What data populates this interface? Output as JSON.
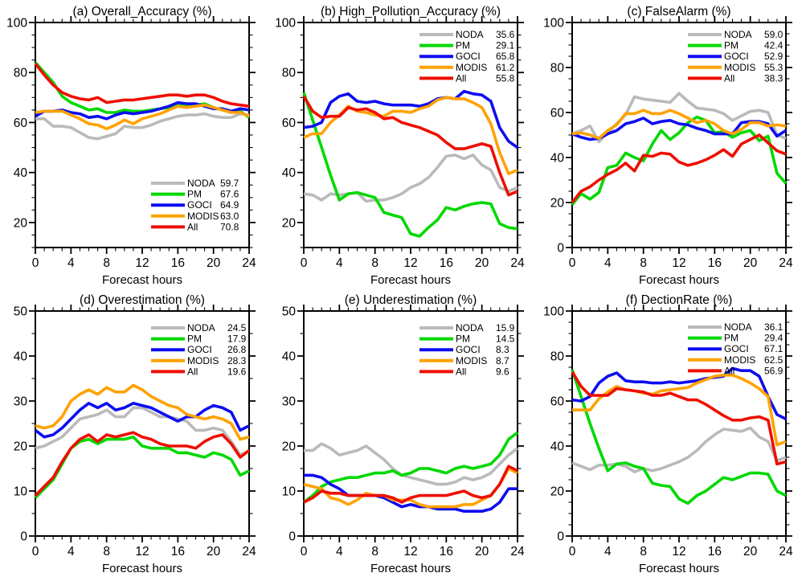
{
  "figure": {
    "background": "#ffffff"
  },
  "series_colors": {
    "NODA": "#bababa",
    "PM": "#00d900",
    "GOCI": "#0d0df0",
    "MODIS": "#ffa200",
    "All": "#ee0f00"
  },
  "x": {
    "label": "Forecast hours",
    "min": 0,
    "max": 24,
    "major_step": 4,
    "minor_step": 1,
    "hours": [
      0,
      1,
      2,
      3,
      4,
      5,
      6,
      7,
      8,
      9,
      10,
      11,
      12,
      13,
      14,
      15,
      16,
      17,
      18,
      19,
      20,
      21,
      22,
      23,
      24
    ]
  },
  "chart_data": [
    {
      "id": "a",
      "type": "line",
      "title": "(a) Overall_Accuracy (%)",
      "xlabel": "Forecast hours",
      "ylim": [
        10,
        100
      ],
      "ymajor": 20,
      "yminor": 5,
      "grid": false,
      "legend_position": "bottom-right",
      "legend_dy": 0,
      "series": [
        {
          "name": "NODA",
          "legend_value": "59.7",
          "values": [
            61.5,
            61.5,
            58.5,
            58.5,
            58,
            56,
            54,
            53.5,
            54.5,
            55.5,
            58.5,
            58,
            58,
            59,
            60.5,
            61.5,
            62.5,
            63,
            63,
            63.5,
            62.5,
            62,
            62,
            63.5,
            63
          ]
        },
        {
          "name": "PM",
          "legend_value": "67.6",
          "values": [
            84,
            80,
            76,
            70.5,
            68,
            66.5,
            65,
            65.5,
            64,
            64,
            65,
            64.5,
            64.5,
            65,
            65.5,
            66,
            67,
            66.5,
            67,
            67.5,
            66,
            65,
            64,
            64.5,
            62
          ]
        },
        {
          "name": "GOCI",
          "legend_value": "64.9",
          "values": [
            62.5,
            64.5,
            64.5,
            65,
            64,
            63.5,
            62,
            62.5,
            61.5,
            63,
            64,
            63.5,
            64,
            64.5,
            65.5,
            66.5,
            68,
            67.5,
            67.5,
            66.5,
            65.5,
            65.5,
            64.5,
            65.5,
            65
          ]
        },
        {
          "name": "MODIS",
          "legend_value": "63.0",
          "values": [
            64,
            64.5,
            64.5,
            64.5,
            63,
            61.5,
            59.5,
            59,
            57.5,
            59,
            61,
            59.5,
            61.5,
            62.5,
            63.5,
            65,
            66.5,
            66,
            66.5,
            67,
            66,
            65,
            64,
            64,
            62.5
          ]
        },
        {
          "name": "All",
          "legend_value": "70.8",
          "values": [
            83.5,
            79,
            75,
            72,
            70.5,
            69.5,
            69,
            70,
            68,
            68.5,
            69,
            69,
            69.5,
            70,
            70.5,
            71,
            71,
            70.5,
            71,
            71,
            70,
            68.5,
            67.5,
            67,
            66.5
          ]
        }
      ]
    },
    {
      "id": "b",
      "type": "line",
      "title": "(b) High_Pollution_Accuracy (%)",
      "xlabel": "Forecast hours",
      "ylim": [
        10,
        100
      ],
      "ymajor": 20,
      "yminor": 5,
      "grid": false,
      "legend_position": "top-right",
      "legend_dy": 0,
      "series": [
        {
          "name": "NODA",
          "legend_value": "35.6",
          "values": [
            31.5,
            31,
            29,
            31.5,
            31,
            31.5,
            32,
            28.5,
            29,
            29,
            30,
            31.5,
            34,
            35.5,
            38,
            42,
            46.5,
            47,
            45.5,
            47,
            43,
            41,
            34,
            32.5,
            34
          ]
        },
        {
          "name": "PM",
          "legend_value": "29.1",
          "values": [
            72,
            61,
            50,
            39,
            29,
            31.5,
            32,
            31,
            30,
            24,
            23,
            22,
            15.5,
            14.5,
            18,
            21,
            26,
            25,
            26.5,
            27.5,
            28,
            27.5,
            19.5,
            18,
            17.5
          ]
        },
        {
          "name": "GOCI",
          "legend_value": "65.8",
          "values": [
            58,
            58.5,
            60,
            68,
            70.5,
            71.5,
            68.5,
            68,
            68.5,
            67.5,
            67,
            67,
            67,
            66.5,
            67.5,
            69.5,
            70,
            69.5,
            72.5,
            71.5,
            71,
            68.5,
            58,
            52.5,
            50
          ]
        },
        {
          "name": "MODIS",
          "legend_value": "61.2",
          "values": [
            54,
            55.5,
            55.5,
            60,
            63,
            66.5,
            64.5,
            64,
            63,
            62.5,
            64.5,
            64.5,
            64,
            65.5,
            66.5,
            69,
            70,
            69.5,
            69.5,
            68,
            66,
            59.5,
            48,
            39.5,
            41
          ]
        },
        {
          "name": "All",
          "legend_value": "55.8",
          "values": [
            70.5,
            64.5,
            62,
            62.5,
            62.5,
            66,
            65,
            65.5,
            64,
            61.5,
            62,
            60,
            59,
            58,
            56.5,
            55,
            52,
            49.5,
            49.5,
            50.5,
            51.5,
            50.5,
            40,
            31,
            32.5
          ]
        }
      ]
    },
    {
      "id": "c",
      "type": "line",
      "title": "(c) FalseAlarm (%)",
      "xlabel": "Forecast hours",
      "ylim": [
        0,
        100
      ],
      "ymajor": 20,
      "yminor": 5,
      "grid": false,
      "legend_position": "top-right",
      "legend_dy": 0,
      "series": [
        {
          "name": "NODA",
          "legend_value": "59.0",
          "values": [
            50.5,
            52,
            54,
            47,
            51,
            55,
            59,
            67,
            66,
            65.5,
            65,
            64.5,
            68.5,
            65,
            62,
            61.5,
            61,
            59.5,
            56.5,
            58.5,
            60.5,
            61,
            60,
            50,
            48.5
          ]
        },
        {
          "name": "PM",
          "legend_value": "42.4",
          "values": [
            19,
            24,
            21.5,
            24.5,
            35.5,
            36.5,
            42,
            40,
            38.5,
            46,
            52,
            48,
            51,
            55.5,
            58,
            56.5,
            51,
            51.5,
            49,
            51,
            52,
            47.5,
            49.5,
            33,
            28.5
          ]
        },
        {
          "name": "GOCI",
          "legend_value": "52.9",
          "values": [
            50.5,
            49,
            48,
            48.5,
            50.5,
            52,
            55,
            56,
            57.5,
            55,
            56,
            56.5,
            55,
            54.5,
            53,
            52,
            50.5,
            50.5,
            50.5,
            55.5,
            56,
            56,
            55,
            49.5,
            52
          ]
        },
        {
          "name": "MODIS",
          "legend_value": "55.3",
          "values": [
            50.5,
            51,
            50,
            48.5,
            52,
            54.5,
            59.5,
            59.5,
            61,
            59.5,
            59.5,
            61,
            59.5,
            57.5,
            55.5,
            56.5,
            55,
            52,
            50.5,
            52.5,
            55.5,
            55.5,
            54,
            54.5,
            54
          ]
        },
        {
          "name": "All",
          "legend_value": "38.3",
          "values": [
            20,
            25,
            27,
            30,
            32.5,
            34.5,
            37.5,
            34,
            41,
            40.5,
            42,
            41.5,
            38,
            36.5,
            37.5,
            39,
            41,
            43.5,
            40.5,
            46,
            48,
            50,
            46.5,
            43,
            41.5
          ]
        }
      ]
    },
    {
      "id": "d",
      "type": "line",
      "title": "(d) Overestimation (%)",
      "xlabel": "Forecast hours",
      "ylim": [
        0,
        50
      ],
      "ymajor": 10,
      "yminor": 5,
      "grid": false,
      "legend_position": "top-right",
      "legend_dy": 6,
      "series": [
        {
          "name": "NODA",
          "legend_value": "24.5",
          "values": [
            19.5,
            20,
            21,
            22,
            24,
            26,
            26.5,
            27,
            28,
            26.5,
            26.5,
            28.5,
            28.5,
            27.5,
            26.5,
            26.5,
            26,
            25.5,
            23.5,
            23.5,
            24,
            23.5,
            21,
            18,
            19
          ]
        },
        {
          "name": "PM",
          "legend_value": "17.9",
          "values": [
            8.5,
            10.5,
            12.5,
            16,
            19.5,
            21,
            21.5,
            20.5,
            21.5,
            21.5,
            21.5,
            22,
            20,
            19.5,
            19.5,
            19.5,
            18.5,
            18.5,
            18,
            17.5,
            18.5,
            18,
            17,
            13.5,
            14.5
          ]
        },
        {
          "name": "GOCI",
          "legend_value": "26.8",
          "values": [
            23.5,
            22,
            22.5,
            24,
            26,
            28,
            29.5,
            28.5,
            29.5,
            28,
            28.5,
            29.5,
            29,
            28.5,
            27.5,
            26.5,
            25.5,
            26.5,
            26.5,
            28,
            29,
            28.5,
            27.5,
            23.5,
            24.5
          ]
        },
        {
          "name": "MODIS",
          "legend_value": "28.3",
          "values": [
            24.5,
            24,
            24.5,
            26.5,
            30,
            31.5,
            32.5,
            31.5,
            33,
            32,
            32,
            33.5,
            32.5,
            31,
            30,
            29,
            28.5,
            27,
            26.5,
            26,
            26.5,
            26,
            25,
            21.5,
            22
          ]
        },
        {
          "name": "All",
          "legend_value": "19.6",
          "values": [
            9,
            11,
            13,
            16.5,
            19.5,
            21.5,
            22.5,
            21,
            22.5,
            22,
            22.5,
            23,
            22,
            21.5,
            20.5,
            20,
            20,
            20,
            19.5,
            21,
            22,
            22.5,
            20.5,
            17.5,
            19
          ]
        }
      ]
    },
    {
      "id": "e",
      "type": "line",
      "title": "(e) Underestimation (%)",
      "xlabel": "Forecast hours",
      "ylim": [
        0,
        50
      ],
      "ymajor": 10,
      "yminor": 5,
      "grid": false,
      "legend_position": "top-right",
      "legend_dy": 6,
      "series": [
        {
          "name": "NODA",
          "legend_value": "15.9",
          "values": [
            19,
            19,
            20.5,
            19.5,
            18,
            18.5,
            19,
            20,
            18.5,
            17,
            15,
            13.5,
            13,
            12.5,
            12,
            11.5,
            11.5,
            12,
            13,
            12.5,
            13,
            14,
            16,
            18,
            19.5
          ]
        },
        {
          "name": "PM",
          "legend_value": "14.5",
          "values": [
            7.5,
            9,
            11,
            12,
            12.5,
            13,
            13,
            13.5,
            14,
            14,
            14.5,
            13.5,
            14,
            15,
            15,
            14.5,
            14,
            15,
            15.5,
            15,
            15.5,
            16,
            18,
            21.5,
            23
          ]
        },
        {
          "name": "GOCI",
          "legend_value": "8.3",
          "values": [
            13.5,
            13.5,
            13,
            11.5,
            10.5,
            9,
            9,
            9,
            9,
            8.5,
            7.5,
            6.5,
            7,
            6.5,
            6.5,
            6,
            6,
            6,
            5.5,
            5.5,
            5.5,
            6,
            7.5,
            10.5,
            10.5
          ]
        },
        {
          "name": "MODIS",
          "legend_value": "8.7",
          "values": [
            11.5,
            11,
            10.5,
            8.5,
            8,
            7,
            8,
            9.5,
            9,
            9,
            8,
            8,
            8,
            7,
            6.5,
            6.5,
            6.5,
            6.5,
            7,
            7,
            8,
            9,
            11.5,
            15,
            14
          ]
        },
        {
          "name": "All",
          "legend_value": "9.6",
          "values": [
            7.5,
            8.5,
            10,
            9.5,
            9.5,
            9,
            9,
            9,
            9,
            9,
            8.5,
            7.5,
            8.5,
            9,
            9,
            9,
            9,
            9.5,
            10,
            9,
            8.5,
            9,
            11.5,
            15.5,
            14.5
          ]
        }
      ]
    },
    {
      "id": "f",
      "type": "line",
      "title": "(f) DectionRate (%)",
      "xlabel": "Forecast hours",
      "ylim": [
        0,
        100
      ],
      "ymajor": 20,
      "yminor": 5,
      "grid": false,
      "legend_position": "top-right",
      "legend_dy": 5,
      "series": [
        {
          "name": "NODA",
          "legend_value": "36.1",
          "values": [
            32.5,
            31,
            29.5,
            31.5,
            31.5,
            32,
            31,
            28.5,
            30,
            29,
            30,
            31.5,
            33,
            35,
            38,
            42,
            45,
            47.5,
            47,
            46.5,
            48,
            44,
            42,
            33.5,
            35
          ]
        },
        {
          "name": "PM",
          "legend_value": "29.4",
          "values": [
            74,
            62,
            50,
            39,
            29,
            32,
            32.5,
            31,
            30,
            23.5,
            22.5,
            22,
            16.5,
            14.5,
            18,
            20,
            23,
            26,
            25,
            26.5,
            28,
            28,
            27.5,
            20,
            18
          ]
        },
        {
          "name": "GOCI",
          "legend_value": "67.1",
          "values": [
            60.5,
            60,
            62,
            68,
            71,
            72.5,
            69,
            68.5,
            68.5,
            68,
            68,
            68.5,
            68,
            68.5,
            69,
            70,
            70.5,
            71,
            74.5,
            73.5,
            73.5,
            71,
            62,
            54,
            52
          ]
        },
        {
          "name": "MODIS",
          "legend_value": "62.5",
          "values": [
            56,
            56,
            56,
            61,
            64,
            66.5,
            65,
            64.5,
            63.5,
            63,
            64.5,
            65,
            65.5,
            66,
            68,
            69.5,
            71,
            71.5,
            71.5,
            70,
            68,
            65.5,
            62,
            40.5,
            42
          ]
        },
        {
          "name": "All",
          "legend_value": "56.9",
          "values": [
            73,
            66.5,
            62.5,
            62.5,
            62.5,
            65.5,
            65,
            64.5,
            64,
            62.5,
            62.5,
            63.5,
            62,
            60.5,
            60.5,
            58.5,
            56,
            53.5,
            51.5,
            51.5,
            52.5,
            53,
            51.5,
            32,
            33
          ]
        }
      ]
    }
  ]
}
